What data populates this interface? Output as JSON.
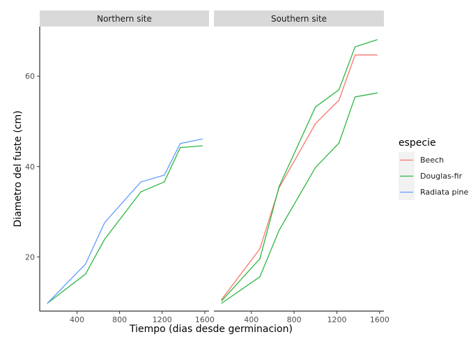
{
  "chart_data": {
    "type": "line",
    "xlabel": "Tiempo (dias desde germinacion)",
    "ylabel": "Diametro del fuste (cm)",
    "xlim": [
      50,
      1640
    ],
    "ylim": [
      8,
      71
    ],
    "x_ticks": [
      400,
      800,
      1200,
      1600
    ],
    "y_ticks": [
      20,
      40,
      60
    ],
    "grid": false,
    "legend": {
      "title": "especie",
      "position": "right",
      "entries": [
        {
          "label": "Beech",
          "color": "#f8766d"
        },
        {
          "label": "Douglas-fir",
          "color": "#2db640"
        },
        {
          "label": "Radiata pine",
          "color": "#619cff"
        }
      ]
    },
    "panels": [
      {
        "title": "Northern site",
        "series": [
          {
            "name": "Douglas-fir",
            "color": "#2db640",
            "x": [
              120,
              480,
              660,
              1000,
              1220,
              1370,
              1580
            ],
            "y": [
              9.7,
              16.2,
              23.9,
              34.4,
              36.6,
              44.2,
              44.6
            ]
          },
          {
            "name": "Radiata pine",
            "color": "#619cff",
            "x": [
              120,
              480,
              660,
              1000,
              1220,
              1370,
              1580
            ],
            "y": [
              9.7,
              18.4,
              27.6,
              36.6,
              38.1,
              45.1,
              46.1
            ]
          }
        ]
      },
      {
        "title": "Southern site",
        "series": [
          {
            "name": "Beech",
            "color": "#f8766d",
            "x": [
              120,
              480,
              660,
              1000,
              1220,
              1370,
              1580
            ],
            "y": [
              10.5,
              21.8,
              35.3,
              49.5,
              54.7,
              64.7,
              64.7
            ]
          },
          {
            "name": "Douglas-fir",
            "color": "#2db640",
            "x": [
              120,
              480,
              660,
              1000,
              1220,
              1370,
              1580
            ],
            "y": [
              10.2,
              19.6,
              35.6,
              53.2,
              57.0,
              66.5,
              68.1
            ]
          },
          {
            "name": "Douglas-fir",
            "color": "#2db640",
            "x": [
              120,
              480,
              660,
              1000,
              1220,
              1370,
              1580
            ],
            "y": [
              9.7,
              15.6,
              25.9,
              39.8,
              45.2,
              55.4,
              56.3
            ]
          }
        ]
      }
    ]
  }
}
